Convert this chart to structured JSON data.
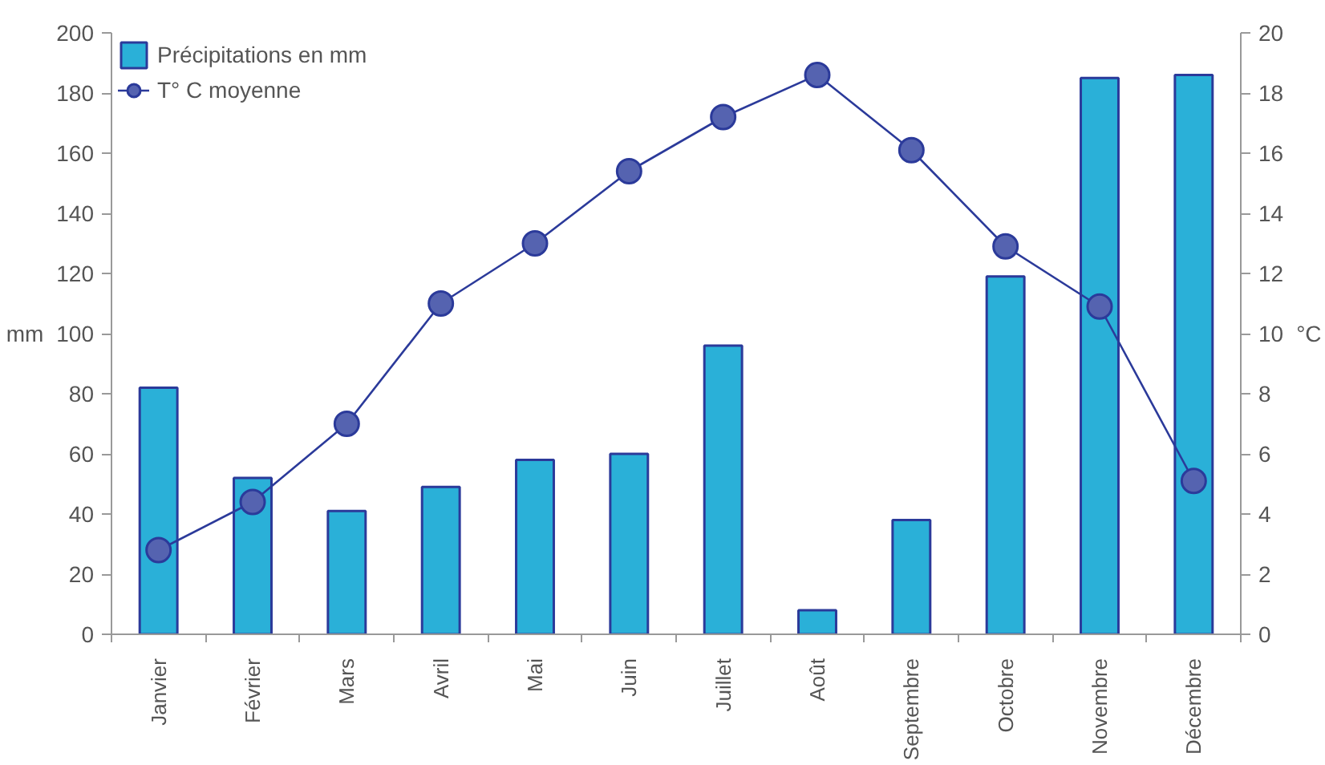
{
  "chart_data": {
    "type": "bar",
    "categories": [
      "Janvier",
      "Février",
      "Mars",
      "Avril",
      "Mai",
      "Juin",
      "Juillet",
      "Août",
      "Septembre",
      "Octobre",
      "Novembre",
      "Décembre"
    ],
    "series": [
      {
        "name": "Précipitations en mm",
        "color": "#2ab0d8",
        "values": [
          82,
          52,
          41,
          49,
          58,
          60,
          96,
          8,
          38,
          119,
          185,
          186
        ]
      },
      {
        "name": "T° C moyenne",
        "type": "line",
        "axis": "y2",
        "color": "#2b3a9a",
        "marker": "circle",
        "values": [
          2.8,
          4.4,
          7.0,
          11.0,
          13.0,
          15.4,
          17.2,
          18.6,
          16.1,
          12.9,
          10.9,
          5.1
        ]
      }
    ],
    "ylabel": "mm",
    "y2label": "°C",
    "ylim": [
      0,
      200
    ],
    "yticks": [
      0,
      20,
      40,
      60,
      80,
      100,
      120,
      140,
      160,
      180,
      200
    ],
    "y2lim": [
      0,
      20
    ],
    "y2ticks": [
      0,
      2,
      4,
      6,
      8,
      10,
      12,
      14,
      16,
      18,
      20
    ],
    "legend": "top left",
    "grid": false
  }
}
